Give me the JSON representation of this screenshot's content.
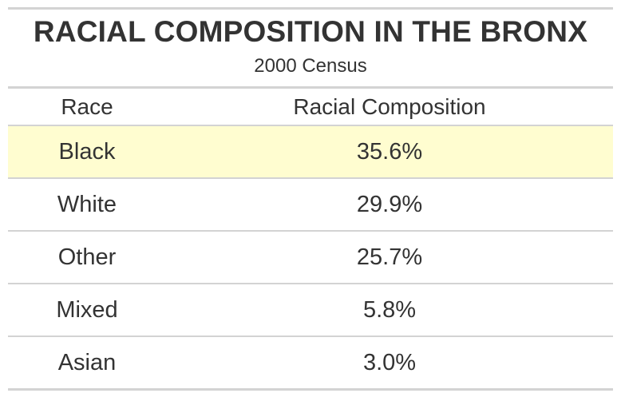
{
  "chart_data": {
    "type": "table",
    "title": "RACIAL COMPOSITION IN THE BRONX",
    "subtitle": "2000 Census",
    "columns": [
      "Race",
      "Racial Composition"
    ],
    "rows": [
      {
        "race": "Black",
        "share": "35.6%",
        "value": 35.6,
        "highlighted": true
      },
      {
        "race": "White",
        "share": "29.9%",
        "value": 29.9,
        "highlighted": false
      },
      {
        "race": "Other",
        "share": "25.7%",
        "value": 25.7,
        "highlighted": false
      },
      {
        "race": "Mixed",
        "share": "5.8%",
        "value": 5.8,
        "highlighted": false
      },
      {
        "race": "Asian",
        "share": "3.0%",
        "value": 3.0,
        "highlighted": false
      }
    ],
    "highlight_color": "#fffdd0",
    "rule_color": "#d3d3d3",
    "text_color": "#333333"
  }
}
